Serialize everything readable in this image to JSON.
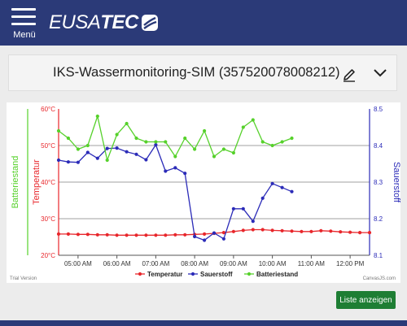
{
  "header": {
    "menu_label": "Menü",
    "logo_prefix": "EUSA",
    "logo_suffix": "TEC",
    "bg_color": "#2b3a78"
  },
  "device": {
    "title": "IKS-Wassermonitoring-SIM (357520078008212)"
  },
  "buttons": {
    "list_label": "Liste anzeigen"
  },
  "chart_data": {
    "type": "line",
    "x_tick_labels": [
      "05:00 AM",
      "06:00 AM",
      "07:00 AM",
      "08:00 AM",
      "09:00 AM",
      "10:00 AM",
      "11:00 AM",
      "12:00 PM"
    ],
    "x_hours": [
      4.5,
      4.75,
      5.0,
      5.25,
      5.5,
      5.75,
      6.0,
      6.25,
      6.5,
      6.75,
      7.0,
      7.25,
      7.5,
      7.75,
      8.0,
      8.25,
      8.5,
      8.75,
      9.0,
      9.25,
      9.5,
      9.75,
      10.0,
      10.25,
      10.5,
      10.75,
      11.0,
      11.25,
      11.5,
      11.75,
      12.0,
      12.25,
      12.5
    ],
    "left_axis": {
      "label": "Temperatur",
      "ticks": [
        "20°C",
        "30°C",
        "40°C",
        "50°C",
        "60°C"
      ],
      "min": 20,
      "max": 60,
      "color": "#e8262b"
    },
    "outer_left_axis": {
      "label": "Batteriestand",
      "color": "#56d12b"
    },
    "right_axis": {
      "label": "Sauerstoff",
      "ticks": [
        "8.1",
        "8.2",
        "8.3",
        "8.4",
        "8.5"
      ],
      "min": 8.1,
      "max": 8.5,
      "color": "#2b2bb8"
    },
    "series": [
      {
        "name": "Temperatur",
        "axis": "left",
        "color": "#e8262b",
        "values": [
          25.8,
          25.8,
          25.7,
          25.7,
          25.6,
          25.6,
          25.5,
          25.5,
          25.5,
          25.5,
          25.5,
          25.5,
          25.6,
          25.6,
          25.7,
          25.8,
          26.0,
          26.2,
          26.5,
          26.8,
          27.0,
          27.0,
          26.8,
          26.7,
          26.6,
          26.5,
          26.5,
          26.7,
          26.6,
          26.4,
          26.3,
          26.2,
          26.2
        ]
      },
      {
        "name": "Sauerstoff",
        "axis": "right",
        "color": "#2b2bb8",
        "values": [
          8.36,
          8.355,
          8.354,
          8.381,
          8.365,
          8.392,
          8.393,
          8.383,
          8.376,
          8.361,
          8.402,
          8.33,
          8.339,
          8.324,
          8.151,
          8.141,
          8.161,
          8.145,
          8.227,
          8.227,
          8.193,
          8.256,
          8.296,
          8.285,
          8.274
        ]
      },
      {
        "name": "Batteriestand",
        "axis": "left",
        "color": "#56d12b",
        "values": [
          54,
          52,
          49,
          50,
          58,
          46,
          53,
          56,
          52,
          51,
          51,
          51,
          47,
          52,
          49,
          54,
          47,
          49,
          48,
          55,
          57,
          51,
          50,
          51,
          52
        ]
      }
    ],
    "legend_position": "bottom",
    "grid": true,
    "footer_left": "Trial Version",
    "footer_right": "CanvasJS.com"
  }
}
